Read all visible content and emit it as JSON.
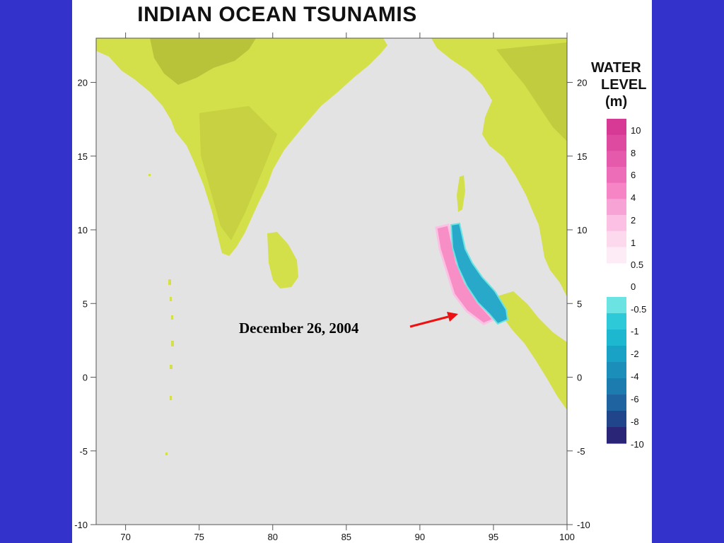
{
  "title": "INDIAN  OCEAN TSUNAMIS",
  "map": {
    "x_ticks": [
      "70",
      "75",
      "80",
      "85",
      "90",
      "95",
      "100"
    ],
    "x_values": [
      70,
      75,
      80,
      85,
      90,
      95,
      100
    ],
    "y_ticks": [
      "20",
      "15",
      "10",
      "5",
      "0",
      "-5",
      "-10"
    ],
    "y_values": [
      20,
      15,
      10,
      5,
      0,
      -5,
      -10
    ],
    "x_range": [
      68,
      100
    ],
    "y_range": [
      -10,
      23
    ],
    "colors": {
      "ocean": "#e3e3e3",
      "land": "#d4e04a",
      "land_dark": "#b9c33a",
      "positive_wave": "#f78ec5",
      "negative_wave": "#29a9c9"
    }
  },
  "legend": {
    "title_lines": [
      "WATER",
      "LEVEL",
      "(m)"
    ],
    "positive_labels": [
      "10",
      "8",
      "6",
      "4",
      "2",
      "1",
      "0.5"
    ],
    "negative_labels": [
      "0",
      "-0.5",
      "-1",
      "-2",
      "-4",
      "-6",
      "-8",
      "-10"
    ],
    "positive_colors": [
      "#d63a95",
      "#dd4a9f",
      "#e55aab",
      "#ee6db8",
      "#f585c5",
      "#f8a3d5",
      "#fbc0e3",
      "#fdd9ee",
      "#fdebf5"
    ],
    "negative_colors": [
      "#6ce3e3",
      "#2ec9d8",
      "#1db7d0",
      "#1aa2c6",
      "#1b8fba",
      "#1c7cb0",
      "#1f64a0",
      "#20458a",
      "#2a2576"
    ]
  },
  "annotation": {
    "text": "December 26, 2004",
    "arrow_color": "#ee1111"
  }
}
